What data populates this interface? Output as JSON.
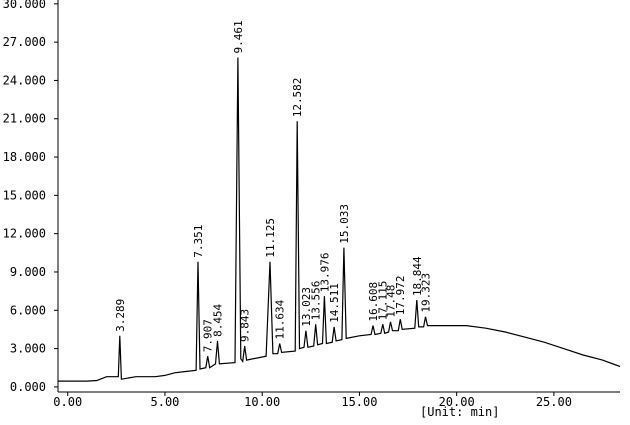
{
  "chart_data": {
    "type": "line",
    "xlabel": "[Unit: min]",
    "xlim": [
      -0.5,
      28.4
    ],
    "ylim": [
      -0.4,
      30.3
    ],
    "xticks": [
      {
        "value": 0,
        "label": "0.00"
      },
      {
        "value": 5,
        "label": "5.00"
      },
      {
        "value": 10,
        "label": "10.00"
      },
      {
        "value": 15,
        "label": "15.00"
      },
      {
        "value": 20,
        "label": "20.00"
      },
      {
        "value": 25,
        "label": "25.00"
      }
    ],
    "yticks": [
      {
        "value": 0,
        "label": "0.000"
      },
      {
        "value": 3,
        "label": "3.000"
      },
      {
        "value": 6,
        "label": "6.000"
      },
      {
        "value": 9,
        "label": "9.000"
      },
      {
        "value": 12,
        "label": "12.000"
      },
      {
        "value": 15,
        "label": "15.000"
      },
      {
        "value": 18,
        "label": "18.000"
      },
      {
        "value": 21,
        "label": "21.000"
      },
      {
        "value": 24,
        "label": "24.000"
      },
      {
        "value": 27,
        "label": "27.000"
      },
      {
        "value": 30,
        "label": "30.000"
      }
    ],
    "series": [
      {
        "color": "#000000",
        "x": [
          -0.5,
          1,
          1.5,
          2,
          2.6,
          2.68,
          2.76,
          3.5,
          4.5,
          5,
          5.5,
          6,
          6.6,
          6.7,
          6.8,
          7.1,
          7.2,
          7.3,
          7.6,
          7.7,
          7.8,
          8.6,
          8.75,
          8.9,
          9.0,
          9.1,
          9.2,
          10.2,
          10.4,
          10.55,
          10.8,
          10.9,
          11.0,
          11.7,
          11.8,
          11.92,
          12.15,
          12.25,
          12.35,
          12.65,
          12.75,
          12.85,
          13.1,
          13.2,
          13.3,
          13.6,
          13.7,
          13.8,
          14.1,
          14.2,
          14.32,
          15,
          15.6,
          15.7,
          15.8,
          16.1,
          16.2,
          16.3,
          16.5,
          16.6,
          16.7,
          17.0,
          17.1,
          17.2,
          17.85,
          17.95,
          18.05,
          18.3,
          18.4,
          18.5,
          19.5,
          20.5,
          21.5,
          22.5,
          23.5,
          24.5,
          25.5,
          26.5,
          27.5,
          28.4
        ],
        "values": [
          0.45,
          0.45,
          0.5,
          0.8,
          0.8,
          4.0,
          0.6,
          0.8,
          0.8,
          0.9,
          1.1,
          1.2,
          1.3,
          9.8,
          1.4,
          1.5,
          2.4,
          1.5,
          1.8,
          3.6,
          1.8,
          1.9,
          25.8,
          2.2,
          2.0,
          3.2,
          2.1,
          2.4,
          9.8,
          2.6,
          2.6,
          3.4,
          2.7,
          2.8,
          20.8,
          3.0,
          3.1,
          4.4,
          3.1,
          3.2,
          4.9,
          3.3,
          3.4,
          7.1,
          3.4,
          3.5,
          4.7,
          3.6,
          3.7,
          10.9,
          3.8,
          4.0,
          4.1,
          4.8,
          4.1,
          4.2,
          4.9,
          4.2,
          4.3,
          5.1,
          4.4,
          4.4,
          5.3,
          4.5,
          4.6,
          6.8,
          4.7,
          4.7,
          5.5,
          4.8,
          4.8,
          4.8,
          4.6,
          4.3,
          3.9,
          3.5,
          3.0,
          2.5,
          2.1,
          1.6
        ]
      }
    ],
    "peaks": {
      "labels": [
        3.289,
        7.351,
        7.907,
        8.454,
        9.461,
        9.843,
        11.125,
        11.634,
        12.582,
        13.023,
        13.556,
        13.976,
        14.511,
        15.033,
        16.608,
        17.115,
        17.48,
        17.972,
        18.844,
        19.323
      ],
      "x": [
        2.68,
        6.7,
        7.2,
        7.7,
        8.75,
        9.1,
        10.4,
        10.9,
        11.8,
        12.25,
        12.75,
        13.2,
        13.7,
        14.2,
        15.7,
        16.2,
        16.6,
        17.1,
        17.95,
        18.4
      ],
      "y": [
        4.0,
        9.8,
        2.4,
        3.6,
        25.8,
        3.2,
        9.8,
        3.4,
        20.8,
        4.4,
        4.9,
        7.1,
        4.7,
        10.9,
        4.8,
        4.9,
        5.1,
        5.3,
        6.8,
        5.5
      ]
    }
  }
}
